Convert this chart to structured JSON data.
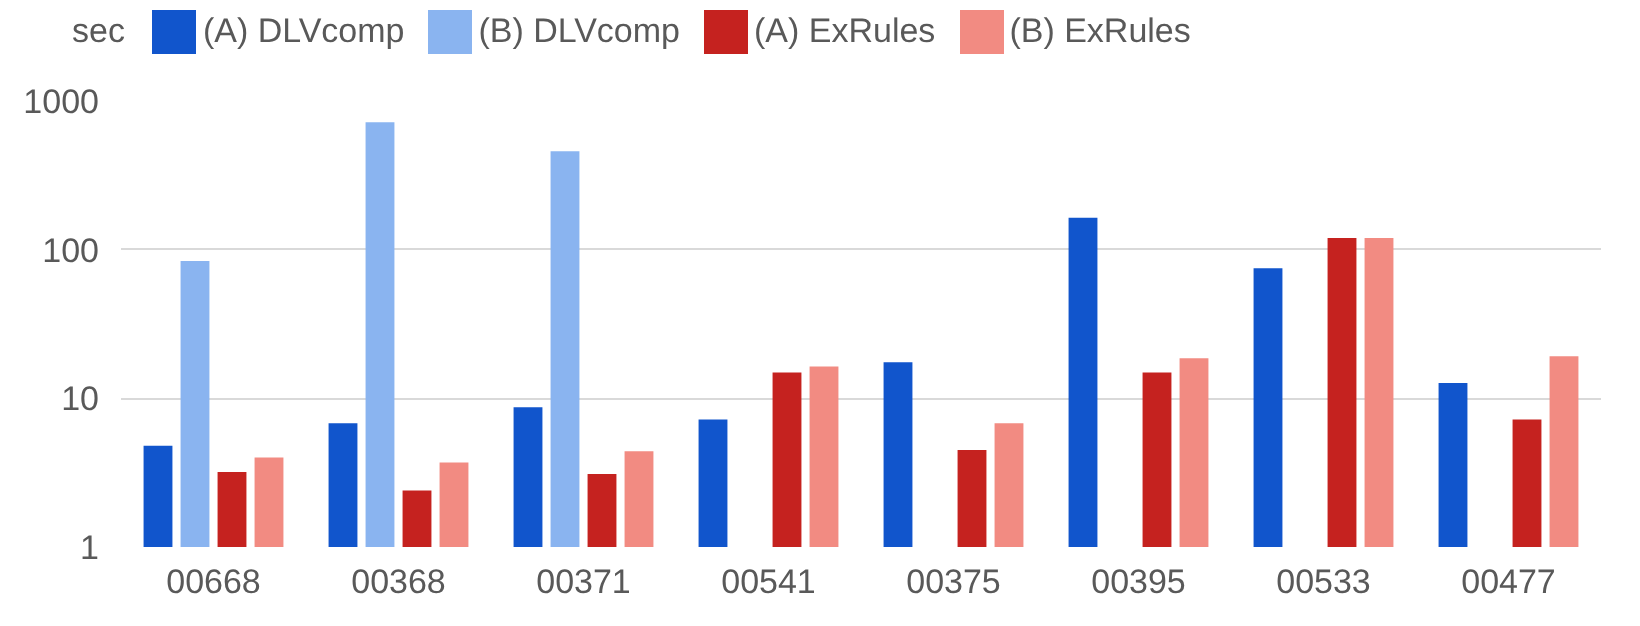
{
  "chart_data": {
    "type": "bar",
    "ylabel": "sec",
    "categories": [
      "00668",
      "00368",
      "00371",
      "00541",
      "00375",
      "00395",
      "00533",
      "00477"
    ],
    "series": [
      {
        "name": "(A) DLVcomp",
        "color": "#1155cc",
        "values": [
          4.8,
          6.8,
          8.7,
          7.2,
          17.5,
          164,
          75,
          12.7
        ]
      },
      {
        "name": "(B) DLVcomp",
        "color": "#8ab4f0",
        "values": [
          84,
          720,
          460,
          null,
          null,
          null,
          null,
          null
        ]
      },
      {
        "name": "(A) ExRules",
        "color": "#c5221f",
        "values": [
          3.2,
          2.4,
          3.1,
          14.9,
          4.5,
          14.9,
          120,
          7.2
        ]
      },
      {
        "name": "(B) ExRules",
        "color": "#f28b82",
        "values": [
          4.0,
          3.7,
          4.4,
          16.4,
          6.8,
          18.6,
          120,
          19.2
        ]
      }
    ],
    "log": true,
    "ylim": [
      1,
      1000
    ],
    "yticks": [
      1,
      10,
      100,
      1000
    ],
    "grid": "y",
    "legend": "top"
  }
}
